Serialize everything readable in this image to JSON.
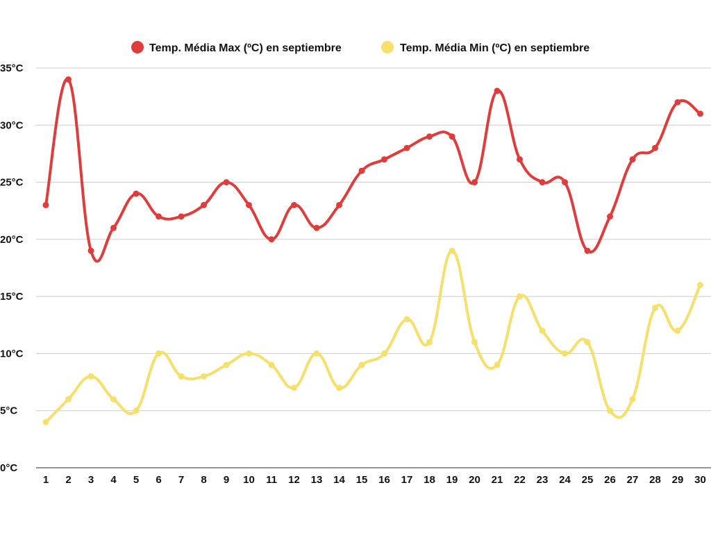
{
  "chart_data": {
    "type": "line",
    "title": "",
    "xlabel": "",
    "ylabel": "",
    "categories": [
      "1",
      "2",
      "3",
      "4",
      "5",
      "6",
      "7",
      "8",
      "9",
      "10",
      "11",
      "12",
      "13",
      "14",
      "15",
      "16",
      "17",
      "18",
      "19",
      "20",
      "21",
      "22",
      "23",
      "24",
      "25",
      "26",
      "27",
      "28",
      "29",
      "30"
    ],
    "ylim": [
      0,
      35
    ],
    "yticks": [
      0,
      5,
      10,
      15,
      20,
      25,
      30,
      35
    ],
    "ytick_labels": [
      "0°C",
      "5°C",
      "10°C",
      "15°C",
      "20°C",
      "25°C",
      "30°C",
      "35°C"
    ],
    "grid": "horizontal",
    "legend_position": "top-center",
    "series": [
      {
        "name": "Temp. Média Max (ºC) en septiembre",
        "color": "#e03c3c",
        "values": [
          23,
          34,
          19,
          21,
          24,
          22,
          22,
          23,
          25,
          23,
          20,
          23,
          21,
          23,
          26,
          27,
          28,
          29,
          29,
          25,
          33,
          27,
          25,
          25,
          19,
          22,
          27,
          28,
          32,
          31
        ]
      },
      {
        "name": "Temp. Média Min (ºC) en septiembre",
        "color": "#f6df6a",
        "values": [
          4,
          6,
          8,
          6,
          5,
          10,
          8,
          8,
          9,
          10,
          9,
          7,
          10,
          7,
          9,
          10,
          13,
          11,
          19,
          11,
          9,
          15,
          12,
          10,
          11,
          5,
          6,
          14,
          12,
          16
        ]
      }
    ]
  }
}
